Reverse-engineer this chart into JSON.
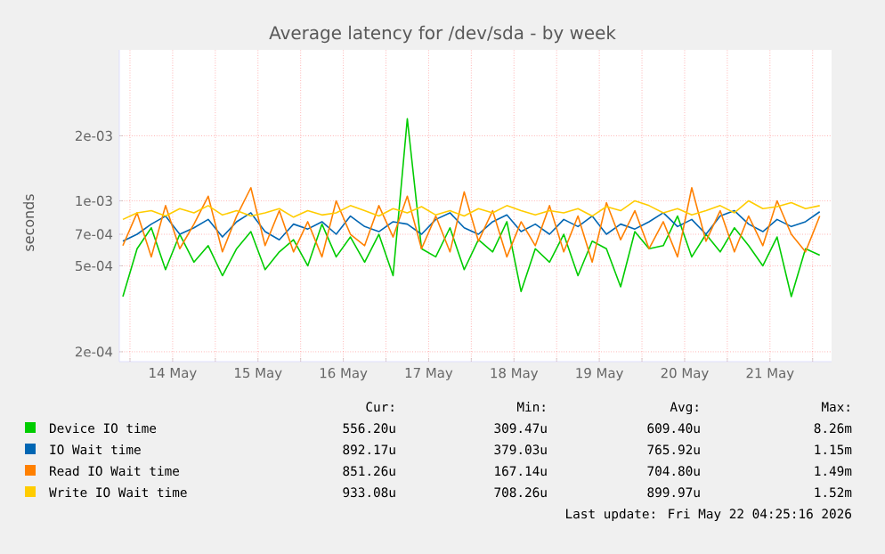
{
  "chart_data": {
    "type": "line",
    "title": "Average latency for /dev/sda - by week",
    "ylabel": "seconds",
    "log": "y",
    "grid": true,
    "legend": "bottom",
    "xlim": [
      "2026-05-13T21:00",
      "2026-05-22T05:20"
    ],
    "xticks": [
      {
        "value": "2026-05-14T00:00",
        "label": null
      },
      {
        "value": "2026-05-14T12:00",
        "label": "14 May"
      },
      {
        "value": "2026-05-15T00:00",
        "label": null
      },
      {
        "value": "2026-05-15T12:00",
        "label": "15 May"
      },
      {
        "value": "2026-05-16T00:00",
        "label": null
      },
      {
        "value": "2026-05-16T12:00",
        "label": "16 May"
      },
      {
        "value": "2026-05-17T00:00",
        "label": null
      },
      {
        "value": "2026-05-17T12:00",
        "label": "17 May"
      },
      {
        "value": "2026-05-18T00:00",
        "label": null
      },
      {
        "value": "2026-05-18T12:00",
        "label": "18 May"
      },
      {
        "value": "2026-05-19T00:00",
        "label": null
      },
      {
        "value": "2026-05-19T12:00",
        "label": "19 May"
      },
      {
        "value": "2026-05-20T00:00",
        "label": null
      },
      {
        "value": "2026-05-20T12:00",
        "label": "20 May"
      },
      {
        "value": "2026-05-21T00:00",
        "label": null
      },
      {
        "value": "2026-05-21T12:00",
        "label": "21 May"
      },
      {
        "value": "2026-05-22T00:00",
        "label": null
      }
    ],
    "ylim": [
      0.00018,
      0.005
    ],
    "yticks": [
      {
        "value": 0.0002,
        "label": "2e-04"
      },
      {
        "value": 0.0005,
        "label": "5e-04"
      },
      {
        "value": 0.0007,
        "label": "7e-04"
      },
      {
        "value": 0.001,
        "label": "1e-03"
      },
      {
        "value": 0.002,
        "label": "2e-03"
      }
    ],
    "x": [
      "2026-05-13T22:00",
      "2026-05-14T02:00",
      "2026-05-14T06:00",
      "2026-05-14T10:00",
      "2026-05-14T14:00",
      "2026-05-14T18:00",
      "2026-05-14T22:00",
      "2026-05-15T02:00",
      "2026-05-15T06:00",
      "2026-05-15T10:00",
      "2026-05-15T14:00",
      "2026-05-15T18:00",
      "2026-05-15T22:00",
      "2026-05-16T02:00",
      "2026-05-16T06:00",
      "2026-05-16T10:00",
      "2026-05-16T14:00",
      "2026-05-16T18:00",
      "2026-05-16T22:00",
      "2026-05-17T02:00",
      "2026-05-17T06:00",
      "2026-05-17T10:00",
      "2026-05-17T14:00",
      "2026-05-17T18:00",
      "2026-05-17T22:00",
      "2026-05-18T02:00",
      "2026-05-18T06:00",
      "2026-05-18T10:00",
      "2026-05-18T14:00",
      "2026-05-18T18:00",
      "2026-05-18T22:00",
      "2026-05-19T02:00",
      "2026-05-19T06:00",
      "2026-05-19T10:00",
      "2026-05-19T14:00",
      "2026-05-19T18:00",
      "2026-05-19T22:00",
      "2026-05-20T02:00",
      "2026-05-20T06:00",
      "2026-05-20T10:00",
      "2026-05-20T14:00",
      "2026-05-20T18:00",
      "2026-05-20T22:00",
      "2026-05-21T02:00",
      "2026-05-21T06:00",
      "2026-05-21T10:00",
      "2026-05-21T14:00",
      "2026-05-21T18:00",
      "2026-05-21T22:00",
      "2026-05-22T02:00"
    ],
    "series": [
      {
        "name": "Device IO time",
        "color": "#00cc00",
        "values": [
          0.00036,
          0.0006,
          0.00075,
          0.00048,
          0.0007,
          0.00052,
          0.00062,
          0.00045,
          0.0006,
          0.00072,
          0.00048,
          0.00058,
          0.00066,
          0.0005,
          0.00078,
          0.00055,
          0.00068,
          0.00052,
          0.0007,
          0.00045,
          0.0024,
          0.0006,
          0.00055,
          0.00075,
          0.00048,
          0.00066,
          0.00058,
          0.0008,
          0.00038,
          0.0006,
          0.00052,
          0.0007,
          0.00045,
          0.00065,
          0.0006,
          0.0004,
          0.00072,
          0.0006,
          0.00062,
          0.00085,
          0.00055,
          0.0007,
          0.00058,
          0.00075,
          0.00062,
          0.0005,
          0.00068,
          0.00036,
          0.0006,
          0.00056
        ]
      },
      {
        "name": "IO Wait time",
        "color": "#0066b3",
        "values": [
          0.00065,
          0.0007,
          0.00078,
          0.00085,
          0.0007,
          0.00075,
          0.00082,
          0.00068,
          0.0008,
          0.00088,
          0.00072,
          0.00066,
          0.00078,
          0.00074,
          0.0008,
          0.0007,
          0.00085,
          0.00076,
          0.00072,
          0.0008,
          0.00078,
          0.0007,
          0.00082,
          0.00088,
          0.00075,
          0.0007,
          0.0008,
          0.00086,
          0.00072,
          0.00078,
          0.0007,
          0.00082,
          0.00076,
          0.00085,
          0.0007,
          0.00078,
          0.00074,
          0.0008,
          0.00088,
          0.00076,
          0.00082,
          0.0007,
          0.00085,
          0.0009,
          0.00078,
          0.00072,
          0.00082,
          0.00076,
          0.0008,
          0.00089
        ]
      },
      {
        "name": "Read IO Wait time",
        "color": "#ff8000",
        "values": [
          0.00062,
          0.00088,
          0.00055,
          0.00095,
          0.0006,
          0.00078,
          0.00105,
          0.00058,
          0.00085,
          0.00115,
          0.00062,
          0.0009,
          0.00058,
          0.0008,
          0.00055,
          0.001,
          0.0007,
          0.00062,
          0.00095,
          0.00068,
          0.00105,
          0.0006,
          0.00085,
          0.00058,
          0.0011,
          0.00065,
          0.0009,
          0.00055,
          0.0008,
          0.00062,
          0.00095,
          0.00058,
          0.00085,
          0.00052,
          0.00098,
          0.00066,
          0.0009,
          0.0006,
          0.0008,
          0.00055,
          0.00115,
          0.00065,
          0.0009,
          0.00058,
          0.00085,
          0.00062,
          0.001,
          0.0007,
          0.00058,
          0.00085
        ]
      },
      {
        "name": "Write IO Wait time",
        "color": "#ffcc00",
        "values": [
          0.00082,
          0.00088,
          0.0009,
          0.00085,
          0.00092,
          0.00088,
          0.00095,
          0.00086,
          0.0009,
          0.00085,
          0.00088,
          0.00092,
          0.00084,
          0.0009,
          0.00086,
          0.00088,
          0.00095,
          0.0009,
          0.00085,
          0.00092,
          0.00088,
          0.00094,
          0.00086,
          0.0009,
          0.00085,
          0.00092,
          0.00088,
          0.00095,
          0.0009,
          0.00086,
          0.0009,
          0.00088,
          0.00092,
          0.00085,
          0.00094,
          0.0009,
          0.001,
          0.00095,
          0.00088,
          0.00092,
          0.00086,
          0.0009,
          0.00095,
          0.00088,
          0.001,
          0.00092,
          0.00094,
          0.00098,
          0.00092,
          0.00095
        ]
      }
    ],
    "annotations": [
      "Cur:",
      "Min:",
      "Avg:",
      "Max:",
      "556.20u",
      "309.47u",
      "609.40u",
      "8.26m",
      "892.17u",
      "379.03u",
      "765.92u",
      "1.15m",
      "851.26u",
      "167.14u",
      "704.80u",
      "1.49m",
      "933.08u",
      "708.26u",
      "899.97u",
      "1.52m",
      "Last update: Fri May 22 04:25:16 2026"
    ]
  }
}
